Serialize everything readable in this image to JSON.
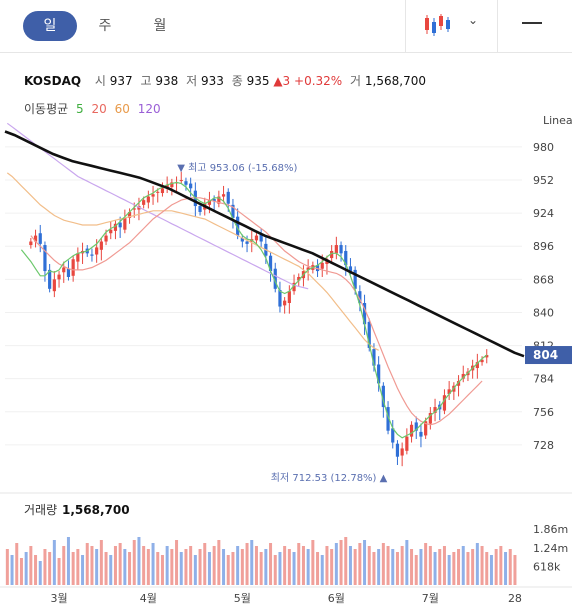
{
  "tabs": [
    {
      "label": "일"
    },
    {
      "label": "주"
    },
    {
      "label": "월"
    }
  ],
  "quote": {
    "name": "KOSDAQ",
    "open_label": "시",
    "open": "937",
    "high_label": "고",
    "high": "938",
    "low_label": "저",
    "low": "933",
    "close_label": "종",
    "close": "935",
    "change": "▲3",
    "change_pct": "+0.32%",
    "volume_label": "거",
    "volume": "1,568,700"
  },
  "ma_legend": {
    "label": "이동평균",
    "items": [
      {
        "period": "5",
        "color": "#3fae3f"
      },
      {
        "period": "20",
        "color": "#e8685f"
      },
      {
        "period": "60",
        "color": "#e89a4a"
      },
      {
        "period": "120",
        "color": "#9a5fd6"
      }
    ]
  },
  "colors": {
    "up": "#e8473f",
    "down": "#2f6fd6",
    "accent": "#3f5fa8",
    "trend": "#111111",
    "vol_up": "#f0a09a",
    "vol_down": "#8fb0e8"
  },
  "chart_data": {
    "type": "candlestick",
    "scale_label": "Linea",
    "y_ticks": [
      980,
      952,
      924,
      896,
      868,
      840,
      812,
      784,
      756,
      728
    ],
    "ylim": [
      700,
      996
    ],
    "current_price": "804",
    "high_annotation": "▼ 최고 953.06 (-15.68%)",
    "high_value": 953.06,
    "high_index": 32,
    "low_annotation": "최저 712.53 (12.78%) ▲",
    "low_value": 712.53,
    "low_index": 75,
    "x_labels": [
      {
        "label": "3월",
        "index": 11
      },
      {
        "label": "4월",
        "index": 30
      },
      {
        "label": "5월",
        "index": 50
      },
      {
        "label": "6월",
        "index": 70
      },
      {
        "label": "7월",
        "index": 90
      },
      {
        "label": "28",
        "index": 108
      }
    ],
    "closes": [
      900,
      905,
      898,
      875,
      860,
      868,
      872,
      878,
      870,
      885,
      890,
      892,
      890,
      888,
      895,
      900,
      905,
      910,
      915,
      912,
      920,
      925,
      928,
      930,
      935,
      938,
      940,
      942,
      945,
      948,
      950,
      950,
      952,
      948,
      945,
      930,
      925,
      932,
      935,
      934,
      938,
      940,
      932,
      920,
      905,
      900,
      898,
      902,
      905,
      900,
      888,
      875,
      860,
      845,
      850,
      858,
      865,
      870,
      875,
      878,
      880,
      875,
      882,
      885,
      892,
      897,
      890,
      880,
      875,
      860,
      848,
      830,
      810,
      795,
      780,
      760,
      740,
      730,
      718,
      725,
      735,
      745,
      740,
      735,
      748,
      755,
      760,
      758,
      770,
      775,
      778,
      782,
      788,
      790,
      795,
      798,
      800,
      804
    ],
    "candle_offset": 5,
    "ma5": [
      893,
      888,
      883,
      877,
      871,
      871,
      875,
      874,
      876,
      882,
      885,
      888,
      890,
      891,
      892,
      895,
      898,
      903,
      908,
      911,
      913,
      917,
      921,
      925,
      929,
      933,
      937,
      939,
      941,
      944,
      946,
      948,
      949,
      950,
      949,
      946,
      941,
      937,
      934,
      932,
      934,
      937,
      937,
      934,
      928,
      919,
      911,
      905,
      902,
      901,
      898,
      893,
      886,
      875,
      866,
      858,
      856,
      858,
      863,
      867,
      872,
      876,
      878,
      880,
      883,
      887,
      890,
      890,
      887,
      881,
      871,
      859,
      846,
      830,
      813,
      796,
      780,
      765,
      752,
      742,
      737,
      734,
      736,
      738,
      741,
      745,
      749,
      753,
      756,
      760,
      766,
      771,
      776,
      781,
      785,
      789,
      793,
      797,
      801,
      804
    ],
    "ma20": [
      905,
      900,
      896,
      892,
      888,
      884,
      881,
      879,
      877,
      876,
      876,
      876,
      877,
      878,
      880,
      882,
      884,
      887,
      890,
      893,
      896,
      899,
      903,
      907,
      911,
      915,
      919,
      922,
      925,
      928,
      931,
      933,
      935,
      936,
      937,
      937,
      937,
      936,
      935,
      934,
      933,
      932,
      931,
      929,
      926,
      923,
      920,
      917,
      914,
      911,
      908,
      904,
      900,
      896,
      892,
      889,
      886,
      883,
      881,
      879,
      878,
      877,
      876,
      875,
      874,
      873,
      871,
      868,
      864,
      858,
      851,
      843,
      834,
      824,
      814,
      804,
      794,
      785,
      776,
      768,
      761,
      755,
      751,
      748,
      746,
      745,
      746,
      748,
      751,
      754,
      758,
      762,
      766,
      770,
      774,
      778,
      782
    ],
    "ma60": [
      958,
      955,
      951,
      947,
      943,
      939,
      935,
      931,
      928,
      925,
      922,
      920,
      918,
      917,
      916,
      915,
      914,
      914,
      914,
      914,
      915,
      916,
      917,
      918,
      919,
      920,
      921,
      922,
      923,
      924,
      925,
      926,
      926,
      926,
      926,
      926,
      925,
      924,
      923,
      922,
      921,
      920,
      919,
      917,
      915,
      913,
      911,
      909,
      907,
      905,
      903,
      901,
      899,
      897,
      895,
      893,
      891,
      889,
      887,
      885,
      883,
      881,
      879,
      876,
      873,
      869,
      865,
      861,
      857,
      852,
      847,
      842,
      837,
      832,
      827,
      822,
      817,
      813,
      810,
      808
    ],
    "ma120": [
      1000,
      997,
      994,
      991,
      988,
      985,
      982,
      979,
      976,
      973,
      970,
      967,
      964,
      961,
      958,
      955,
      953,
      951,
      949,
      947,
      945,
      943,
      941,
      939,
      937,
      935,
      933,
      931,
      929,
      927,
      925,
      923,
      921,
      919,
      917,
      915,
      913,
      911,
      909,
      907,
      905,
      903,
      901,
      899,
      897,
      895,
      893,
      891,
      889,
      887,
      885,
      883,
      881,
      879,
      877,
      875,
      873,
      871,
      869,
      867,
      865,
      863,
      862,
      861,
      860
    ],
    "trend_line": [
      993,
      990,
      986,
      982,
      978,
      974,
      971,
      968,
      966,
      964,
      962,
      960,
      958,
      956,
      954,
      951,
      948,
      945,
      941,
      937,
      933,
      929,
      925,
      921,
      917,
      913,
      909,
      905,
      902,
      899,
      896,
      893,
      890,
      886,
      882,
      878,
      874,
      870,
      866,
      862,
      858,
      854,
      850,
      846,
      842,
      838,
      834,
      830,
      826,
      822,
      818,
      814,
      810,
      806,
      803
    ],
    "volume_ticks": [
      "1.86m",
      "1.24m",
      "618k"
    ],
    "volume_label": "거래량",
    "volume_value": "1,568,700",
    "volumes": [
      1.2,
      1.0,
      1.4,
      0.9,
      1.1,
      1.3,
      1.0,
      0.8,
      1.2,
      1.1,
      1.5,
      0.9,
      1.3,
      1.6,
      1.1,
      1.2,
      1.0,
      1.4,
      1.3,
      1.2,
      1.5,
      1.1,
      1.0,
      1.3,
      1.4,
      1.2,
      1.1,
      1.5,
      1.6,
      1.3,
      1.2,
      1.4,
      1.1,
      1.0,
      1.3,
      1.2,
      1.5,
      1.1,
      1.2,
      1.3,
      1.0,
      1.2,
      1.4,
      1.1,
      1.3,
      1.5,
      1.2,
      1.0,
      1.1,
      1.3,
      1.2,
      1.4,
      1.5,
      1.3,
      1.1,
      1.2,
      1.4,
      1.0,
      1.1,
      1.3,
      1.2,
      1.1,
      1.4,
      1.3,
      1.2,
      1.5,
      1.1,
      1.0,
      1.3,
      1.2,
      1.4,
      1.5,
      1.6,
      1.3,
      1.2,
      1.4,
      1.5,
      1.3,
      1.1,
      1.2,
      1.4,
      1.3,
      1.2,
      1.1,
      1.3,
      1.5,
      1.2,
      1.0,
      1.2,
      1.4,
      1.3,
      1.1,
      1.2,
      1.3,
      1.0,
      1.1,
      1.2,
      1.3,
      1.1,
      1.2,
      1.4,
      1.3,
      1.1,
      1.0,
      1.2,
      1.3,
      1.1,
      1.2,
      1.0
    ]
  }
}
